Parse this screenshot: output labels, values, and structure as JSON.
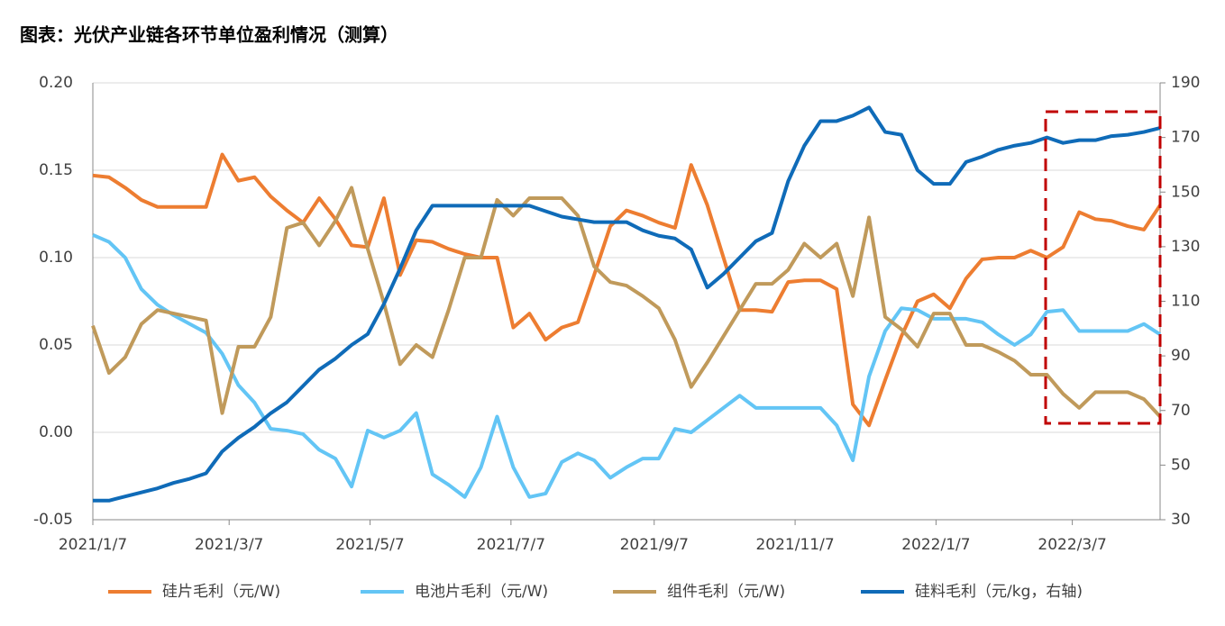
{
  "chart_data": {
    "type": "line",
    "title": "图表：光伏产业链各环节单位盈利情况（测算）",
    "x": [
      "2021/1/7",
      "2021/1/14",
      "2021/1/21",
      "2021/1/28",
      "2021/2/4",
      "2021/2/11",
      "2021/2/18",
      "2021/2/25",
      "2021/3/4",
      "2021/3/11",
      "2021/3/18",
      "2021/3/25",
      "2021/4/1",
      "2021/4/8",
      "2021/4/15",
      "2021/4/22",
      "2021/4/29",
      "2021/5/6",
      "2021/5/13",
      "2021/5/20",
      "2021/5/27",
      "2021/6/3",
      "2021/6/10",
      "2021/6/17",
      "2021/6/24",
      "2021/7/1",
      "2021/7/8",
      "2021/7/15",
      "2021/7/22",
      "2021/7/29",
      "2021/8/5",
      "2021/8/12",
      "2021/8/19",
      "2021/8/26",
      "2021/9/2",
      "2021/9/9",
      "2021/9/16",
      "2021/9/23",
      "2021/9/30",
      "2021/10/7",
      "2021/10/14",
      "2021/10/21",
      "2021/10/28",
      "2021/11/4",
      "2021/11/11",
      "2021/11/18",
      "2021/11/25",
      "2021/12/2",
      "2021/12/9",
      "2021/12/16",
      "2021/12/23",
      "2021/12/30",
      "2022/1/6",
      "2022/1/13",
      "2022/1/20",
      "2022/1/27",
      "2022/2/3",
      "2022/2/10",
      "2022/2/17",
      "2022/2/24",
      "2022/3/3",
      "2022/3/10",
      "2022/3/17",
      "2022/3/24",
      "2022/3/31",
      "2022/4/7",
      "2022/4/14"
    ],
    "xlim": [
      "2021/1/7",
      "2022/4/14"
    ],
    "xticks": [
      "2021/1/7",
      "2021/3/7",
      "2021/5/7",
      "2021/7/7",
      "2021/9/7",
      "2021/11/7",
      "2022/1/7",
      "2022/3/7"
    ],
    "ylim": [
      -0.05,
      0.2
    ],
    "yticks": [
      {
        "value": -0.05,
        "label": "-0.05"
      },
      {
        "value": 0,
        "label": "0.00"
      },
      {
        "value": 0.05,
        "label": "0.05"
      },
      {
        "value": 0.1,
        "label": "0.10"
      },
      {
        "value": 0.15,
        "label": "0.15"
      },
      {
        "value": 0.2,
        "label": "0.20"
      }
    ],
    "y2lim": [
      30,
      190
    ],
    "y2ticks": [
      30,
      50,
      70,
      90,
      110,
      130,
      150,
      170,
      190
    ],
    "grid": true,
    "legend": "bottom",
    "series": [
      {
        "name": "硅片毛利（元/W)",
        "color": "#ED7D31",
        "values": [
          0.147,
          0.146,
          0.14,
          0.133,
          0.129,
          0.129,
          0.129,
          0.129,
          0.159,
          0.144,
          0.146,
          0.135,
          0.127,
          0.12,
          0.134,
          0.122,
          0.107,
          0.106,
          0.134,
          0.09,
          0.11,
          0.109,
          0.105,
          0.102,
          0.1,
          0.1,
          0.06,
          0.068,
          0.053,
          0.06,
          0.063,
          0.09,
          0.118,
          0.127,
          0.124,
          0.12,
          0.117,
          0.153,
          0.13,
          0.1,
          0.07,
          0.07,
          0.069,
          0.086,
          0.087,
          0.087,
          0.082,
          0.016,
          0.004,
          0.03,
          0.055,
          0.075,
          0.079,
          0.071,
          0.088,
          0.099,
          0.1,
          0.1,
          0.104,
          0.1,
          0.106,
          0.126,
          0.122,
          0.121,
          0.118,
          0.116,
          0.13
        ]
      },
      {
        "name": "电池片毛利（元/W)",
        "color": "#63C5F5",
        "values": [
          0.113,
          0.109,
          0.1,
          0.082,
          0.073,
          0.067,
          0.062,
          0.057,
          0.045,
          0.027,
          0.017,
          0.002,
          0.001,
          -0.001,
          -0.01,
          -0.015,
          -0.031,
          0.001,
          -0.003,
          0.001,
          0.011,
          -0.024,
          -0.03,
          -0.037,
          -0.02,
          0.009,
          -0.02,
          -0.037,
          -0.035,
          -0.017,
          -0.012,
          -0.016,
          -0.026,
          -0.02,
          -0.015,
          -0.015,
          0.002,
          0.0,
          0.007,
          0.014,
          0.021,
          0.014,
          0.014,
          0.014,
          0.014,
          0.014,
          0.004,
          -0.016,
          0.032,
          0.058,
          0.071,
          0.07,
          0.065,
          0.065,
          0.065,
          0.063,
          0.056,
          0.05,
          0.056,
          0.069,
          0.07,
          0.058,
          0.058,
          0.058,
          0.058,
          0.062,
          0.056
        ]
      },
      {
        "name": "组件毛利（元/W)",
        "color": "#C09A5B",
        "values": [
          0.061,
          0.034,
          0.043,
          0.062,
          0.07,
          0.068,
          0.066,
          0.064,
          0.011,
          0.049,
          0.049,
          0.066,
          0.117,
          0.12,
          0.107,
          0.121,
          0.14,
          0.105,
          0.074,
          0.039,
          0.05,
          0.043,
          0.07,
          0.1,
          0.1,
          0.133,
          0.124,
          0.134,
          0.134,
          0.134,
          0.124,
          0.095,
          0.086,
          0.084,
          0.078,
          0.071,
          0.053,
          0.026,
          0.04,
          0.055,
          0.07,
          0.085,
          0.085,
          0.093,
          0.108,
          0.1,
          0.108,
          0.078,
          0.123,
          0.066,
          0.059,
          0.049,
          0.068,
          0.068,
          0.05,
          0.05,
          0.046,
          0.041,
          0.033,
          0.033,
          0.022,
          0.014,
          0.023,
          0.023,
          0.023,
          0.019,
          0.009
        ]
      },
      {
        "name": "硅料毛利（元/kg，右轴)",
        "color": "#0F6BB8",
        "axis": "y2",
        "values": [
          37,
          37,
          38.5,
          40,
          41.5,
          43.5,
          45,
          47,
          55,
          60,
          64,
          69,
          73,
          79,
          85,
          89,
          94,
          98,
          109,
          122,
          136,
          145,
          145,
          145,
          145,
          145,
          145,
          145,
          143,
          141,
          140,
          139,
          139,
          139,
          136,
          134,
          133,
          129,
          115,
          120,
          126,
          132,
          135,
          154,
          167,
          176,
          176,
          178,
          181,
          172,
          171,
          158,
          153,
          153,
          161,
          163,
          165.5,
          167,
          168,
          170,
          168,
          169,
          169,
          170.5,
          171,
          172,
          173.5
        ]
      }
    ]
  }
}
